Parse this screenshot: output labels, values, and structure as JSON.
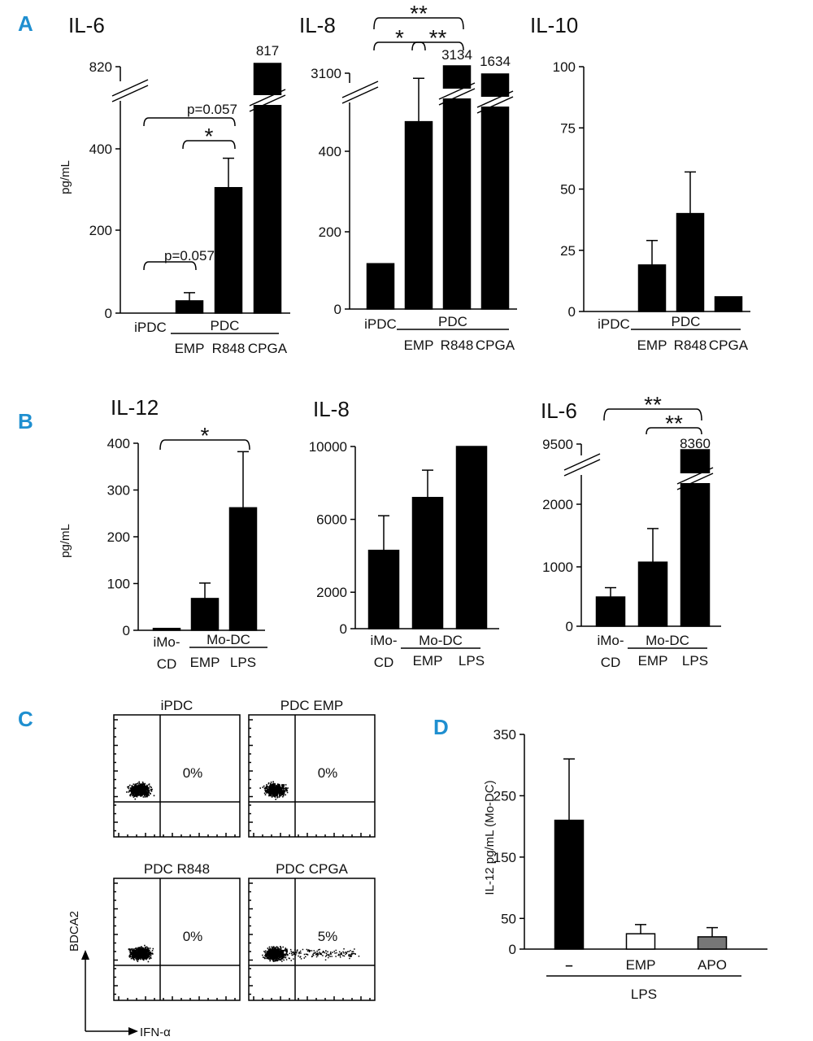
{
  "panel_labels": [
    "A",
    "B",
    "C",
    "D"
  ],
  "chart_data": [
    {
      "id": "A1",
      "type": "bar",
      "panel": "A",
      "title": "IL-6",
      "ylabel": "pg/mL",
      "categories": [
        "iPDC",
        "EMP",
        "R848",
        "CPGA"
      ],
      "values": [
        0,
        30,
        307,
        817
      ],
      "errors": [
        0,
        20,
        72,
        0
      ],
      "group_label": "PDC",
      "axis_break": true,
      "yticks": [
        "0",
        "200",
        "400",
        "820"
      ],
      "value_labels": [
        {
          "cat": 3,
          "text": "817"
        }
      ],
      "comparisons": [
        {
          "from": 0,
          "to": 1,
          "label": "p=0.057"
        },
        {
          "from": 0,
          "to": 2,
          "label": "p=0.057"
        },
        {
          "from": 1,
          "to": 2,
          "label": "*"
        }
      ]
    },
    {
      "id": "A2",
      "type": "bar",
      "panel": "A",
      "title": "IL-8",
      "categories": [
        "iPDC",
        "EMP",
        "R848",
        "CPGA"
      ],
      "values": [
        115,
        475,
        3134,
        1634
      ],
      "errors": [
        0,
        110,
        0,
        0
      ],
      "group_label": "PDC",
      "axis_break": true,
      "yticks": [
        "0",
        "200",
        "400",
        "3100"
      ],
      "value_labels": [
        {
          "cat": 2,
          "text": "3134"
        },
        {
          "cat": 3,
          "text": "1634"
        }
      ],
      "comparisons": [
        {
          "from": 0,
          "to": 2,
          "label": "**"
        },
        {
          "from": 0,
          "to": 1,
          "label": "*"
        },
        {
          "from": 1,
          "to": 2,
          "label": "**"
        }
      ]
    },
    {
      "id": "A3",
      "type": "bar",
      "panel": "A",
      "title": "IL-10",
      "categories": [
        "iPDC",
        "EMP",
        "R848",
        "CPGA"
      ],
      "values": [
        0,
        19,
        40,
        6
      ],
      "errors": [
        0,
        10,
        17,
        0
      ],
      "group_label": "PDC",
      "ylim": [
        0,
        100
      ],
      "yticks": [
        "0",
        "25",
        "50",
        "75",
        "100"
      ]
    },
    {
      "id": "B1",
      "type": "bar",
      "panel": "B",
      "title": "IL-12",
      "ylabel": "pg/mL",
      "categories": [
        "iMo-CD",
        "EMP",
        "LPS"
      ],
      "values": [
        4,
        68,
        262
      ],
      "errors": [
        0,
        33,
        120
      ],
      "group_label": "Mo-DC",
      "ylim": [
        0,
        400
      ],
      "yticks": [
        "0",
        "100",
        "200",
        "300",
        "400"
      ],
      "comparisons": [
        {
          "from": 0,
          "to": 2,
          "label": "*"
        }
      ]
    },
    {
      "id": "B2",
      "type": "bar",
      "panel": "B",
      "title": "IL-8",
      "categories": [
        "iMo-CD",
        "EMP",
        "LPS"
      ],
      "values": [
        4300,
        7200,
        10000
      ],
      "errors": [
        1900,
        1500,
        0
      ],
      "group_label": "Mo-DC",
      "ylim": [
        0,
        10000
      ],
      "yticks": [
        "0",
        "2000",
        "6000",
        "10000"
      ]
    },
    {
      "id": "B3",
      "type": "bar",
      "panel": "B",
      "title": "IL-6",
      "categories": [
        "iMo-CD",
        "EMP",
        "LPS"
      ],
      "values": [
        470,
        1030,
        8360
      ],
      "errors": [
        150,
        540,
        0
      ],
      "group_label": "Mo-DC",
      "axis_break": true,
      "yticks": [
        "0",
        "1000",
        "2000",
        "9500"
      ],
      "value_labels": [
        {
          "cat": 2,
          "text": "8360"
        }
      ],
      "comparisons": [
        {
          "from": 0,
          "to": 2,
          "label": "**"
        },
        {
          "from": 1,
          "to": 2,
          "label": "**"
        }
      ]
    },
    {
      "id": "C",
      "type": "scatter",
      "panel": "C",
      "xlabel": "IFN-α",
      "ylabel": "BDCA2",
      "plots": [
        {
          "title": "iPDC",
          "percent": "0%",
          "spread": false
        },
        {
          "title": "PDC EMP",
          "percent": "0%",
          "spread": false
        },
        {
          "title": "PDC R848",
          "percent": "0%",
          "spread": false
        },
        {
          "title": "PDC CPGA",
          "percent": "5%",
          "spread": true
        }
      ]
    },
    {
      "id": "D",
      "type": "bar",
      "panel": "D",
      "ylabel": "IL-12 pg/mL (Mo-DC)",
      "categories": [
        "–",
        "EMP",
        "APO"
      ],
      "values": [
        210,
        25,
        20
      ],
      "errors": [
        100,
        15,
        15
      ],
      "colors": [
        "#000000",
        "#ffffff",
        "#777777"
      ],
      "group_label": "LPS",
      "ylim": [
        0,
        350
      ],
      "yticks": [
        "0",
        "50",
        "150",
        "250",
        "350"
      ]
    }
  ]
}
